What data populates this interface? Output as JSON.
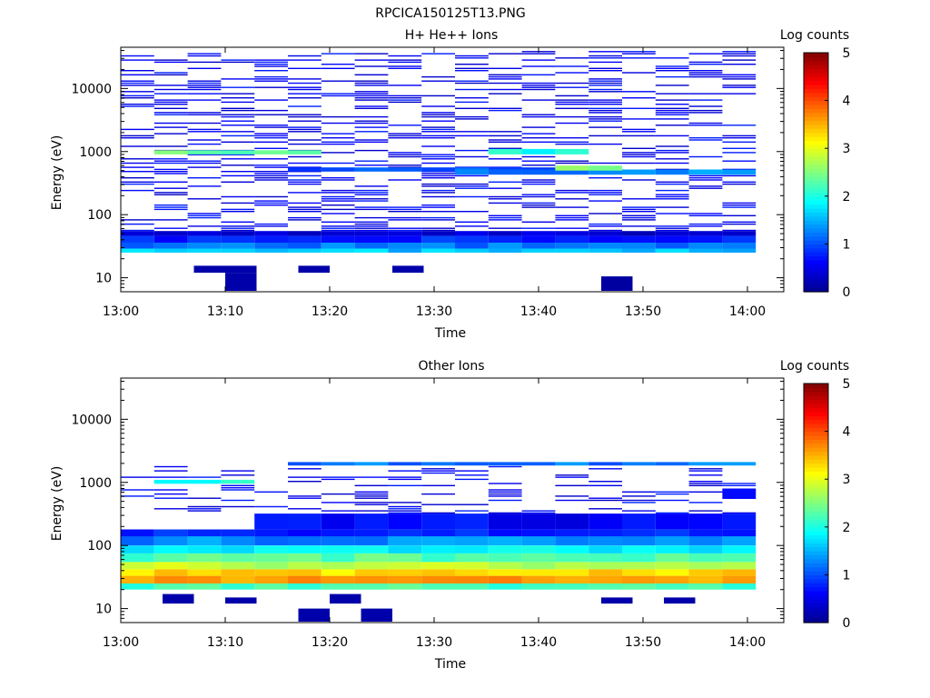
{
  "figure_title": "RPCICA150125T13.PNG",
  "colorscale": [
    "#00008f",
    "#0000ff",
    "#0080ff",
    "#00ffff",
    "#80ff80",
    "#ffff00",
    "#ff8000",
    "#ff0000",
    "#800000"
  ],
  "chart_data": [
    {
      "type": "heatmap",
      "title": "H+ He++ Ions",
      "xlabel": "Time",
      "ylabel": "Energy (eV)",
      "x_start": "13:00",
      "x_end": "14:02",
      "bin_minutes": 3.2,
      "xticks": [
        "13:00",
        "13:10",
        "13:20",
        "13:30",
        "13:40",
        "13:50",
        "14:00"
      ],
      "ylim": [
        6,
        45000
      ],
      "yscale": "log",
      "yticks": [
        "10",
        "100",
        "1000",
        "10000"
      ],
      "colorbar": {
        "label": "Log counts",
        "range": [
          0,
          5
        ],
        "ticks": [
          "0",
          "1",
          "2",
          "3",
          "4",
          "5"
        ]
      },
      "seed": 7,
      "bands": [
        {
          "from_min": 0,
          "to_min": 62,
          "emin": 25,
          "emax": 29,
          "level": 1.6
        },
        {
          "from_min": 0,
          "to_min": 62,
          "emin": 29,
          "emax": 36,
          "level": 1.2
        },
        {
          "from_min": 0,
          "to_min": 62,
          "emin": 36,
          "emax": 46,
          "level": 0.8
        },
        {
          "from_min": 0,
          "to_min": 62,
          "emin": 46,
          "emax": 55,
          "level": 0.4
        },
        {
          "from_min": 6,
          "to_min": 19,
          "emin": 900,
          "emax": 1050,
          "level": 2.4
        },
        {
          "from_min": 16,
          "to_min": 39,
          "emin": 480,
          "emax": 560,
          "level": 1.0
        },
        {
          "from_min": 32,
          "to_min": 60,
          "emin": 430,
          "emax": 520,
          "level": 1.3
        },
        {
          "from_min": 38,
          "to_min": 44,
          "emin": 900,
          "emax": 1100,
          "level": 2.0
        },
        {
          "from_min": 42,
          "to_min": 45,
          "emin": 500,
          "emax": 600,
          "level": 2.6
        }
      ],
      "sparse": {
        "emin": 55,
        "emax": 42000,
        "density": 0.33,
        "level": 0.3
      },
      "low_blobs": [
        {
          "from_min": 7,
          "to_min": 13,
          "emin": 12,
          "emax": 15.5,
          "level": 0.15
        },
        {
          "from_min": 10,
          "to_min": 13,
          "emin": 6.2,
          "emax": 12,
          "level": 0.15
        },
        {
          "from_min": 17,
          "to_min": 20,
          "emin": 12,
          "emax": 15.5,
          "level": 0.15
        },
        {
          "from_min": 26,
          "to_min": 29,
          "emin": 12,
          "emax": 15.5,
          "level": 0.15
        },
        {
          "from_min": 46,
          "to_min": 49,
          "emin": 6.2,
          "emax": 10.5,
          "level": 0.1
        }
      ]
    },
    {
      "type": "heatmap",
      "title": "Other Ions",
      "xlabel": "Time",
      "ylabel": "Energy (eV)",
      "x_start": "13:00",
      "x_end": "14:02",
      "bin_minutes": 3.2,
      "xticks": [
        "13:00",
        "13:10",
        "13:20",
        "13:30",
        "13:40",
        "13:50",
        "14:00"
      ],
      "ylim": [
        6,
        45000
      ],
      "yscale": "log",
      "yticks": [
        "10",
        "100",
        "1000",
        "10000"
      ],
      "colorbar": {
        "label": "Log counts",
        "range": [
          0,
          5
        ],
        "ticks": [
          "0",
          "1",
          "2",
          "3",
          "4",
          "5"
        ]
      },
      "seed": 23,
      "bands": [
        {
          "from_min": 0,
          "to_min": 62,
          "emin": 20,
          "emax": 25,
          "level": 2.2
        },
        {
          "from_min": 0,
          "to_min": 62,
          "emin": 25,
          "emax": 33,
          "level": 3.6
        },
        {
          "from_min": 0,
          "to_min": 62,
          "emin": 33,
          "emax": 42,
          "level": 3.3
        },
        {
          "from_min": 0,
          "to_min": 62,
          "emin": 42,
          "emax": 55,
          "level": 2.8
        },
        {
          "from_min": 0,
          "to_min": 62,
          "emin": 55,
          "emax": 75,
          "level": 2.3
        },
        {
          "from_min": 0,
          "to_min": 62,
          "emin": 75,
          "emax": 100,
          "level": 1.8
        },
        {
          "from_min": 0,
          "to_min": 62,
          "emin": 100,
          "emax": 140,
          "level": 1.3
        },
        {
          "from_min": 0,
          "to_min": 62,
          "emin": 140,
          "emax": 180,
          "level": 0.8
        },
        {
          "from_min": 13,
          "to_min": 62,
          "emin": 180,
          "emax": 320,
          "level": 0.6
        },
        {
          "from_min": 16,
          "to_min": 62,
          "emin": 1850,
          "emax": 2100,
          "level": 1.2
        },
        {
          "from_min": 6,
          "to_min": 10,
          "emin": 950,
          "emax": 1100,
          "level": 2.0
        },
        {
          "from_min": 58,
          "to_min": 62,
          "emin": 550,
          "emax": 800,
          "level": 0.7
        }
      ],
      "sparse": {
        "emin": 320,
        "emax": 1800,
        "density": 0.22,
        "level": 0.3
      },
      "low_blobs": [
        {
          "from_min": 4,
          "to_min": 7,
          "emin": 12,
          "emax": 17,
          "level": 0.15
        },
        {
          "from_min": 10,
          "to_min": 13,
          "emin": 12,
          "emax": 15,
          "level": 0.15
        },
        {
          "from_min": 17,
          "to_min": 20,
          "emin": 6.2,
          "emax": 10,
          "level": 0.15
        },
        {
          "from_min": 20,
          "to_min": 23,
          "emin": 12,
          "emax": 17,
          "level": 0.15
        },
        {
          "from_min": 23,
          "to_min": 26,
          "emin": 6.2,
          "emax": 10,
          "level": 0.15
        },
        {
          "from_min": 46,
          "to_min": 49,
          "emin": 12,
          "emax": 15,
          "level": 0.15
        },
        {
          "from_min": 52,
          "to_min": 55,
          "emin": 12,
          "emax": 15,
          "level": 0.15
        }
      ]
    }
  ]
}
